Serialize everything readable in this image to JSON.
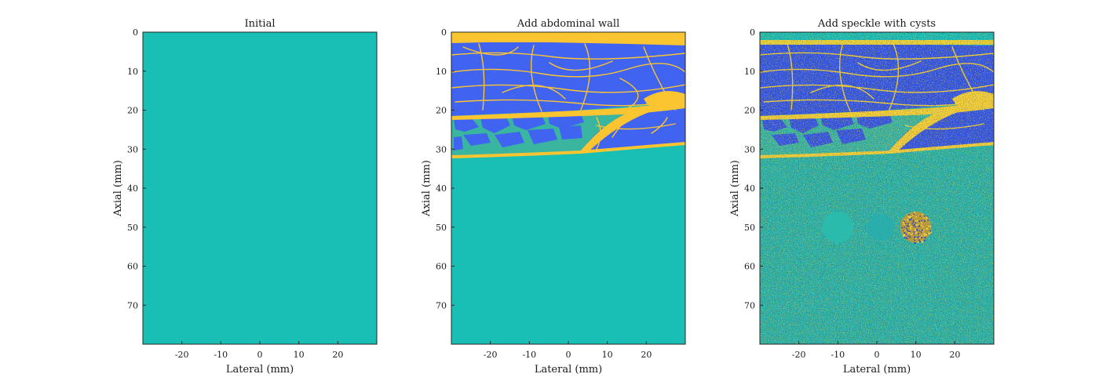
{
  "chart_data": [
    {
      "type": "heatmap",
      "title": "Initial",
      "xlabel": "Lateral (mm)",
      "ylabel": "Axial (mm)",
      "xlim": [
        -30,
        30
      ],
      "ylim": [
        0,
        80
      ],
      "xticks": [
        -20,
        -10,
        0,
        10,
        20
      ],
      "yticks": [
        0,
        10,
        20,
        30,
        40,
        50,
        60,
        70
      ],
      "regions": [
        {
          "label": "background tissue",
          "axial_range_mm": [
            0,
            80
          ],
          "color": "#19bfb5"
        }
      ]
    },
    {
      "type": "heatmap",
      "title": "Add abdominal wall",
      "xlabel": "Lateral (mm)",
      "ylabel": "Axial (mm)",
      "xlim": [
        -30,
        30
      ],
      "ylim": [
        0,
        80
      ],
      "xticks": [
        -20,
        -10,
        0,
        10,
        20
      ],
      "yticks": [
        0,
        10,
        20,
        30,
        40,
        50,
        60,
        70
      ],
      "regions": [
        {
          "label": "skin layer",
          "axial_range_mm": [
            0,
            2.5
          ],
          "color": "#fbc431"
        },
        {
          "label": "muscle with fascia",
          "axial_range_mm": [
            2.5,
            21.5
          ],
          "color": "#4063f0"
        },
        {
          "label": "fat layer",
          "axial_range_mm": [
            21.5,
            31
          ],
          "color": "#3ab6a0"
        },
        {
          "label": "liver background",
          "axial_range_mm": [
            31,
            80
          ],
          "color": "#19bfb5"
        }
      ]
    },
    {
      "type": "heatmap",
      "title": "Add speckle with cysts",
      "xlabel": "Lateral (mm)",
      "ylabel": "Axial (mm)",
      "xlim": [
        -30,
        30
      ],
      "ylim": [
        0,
        80
      ],
      "xticks": [
        -20,
        -10,
        0,
        10,
        20
      ],
      "yticks": [
        0,
        10,
        20,
        30,
        40,
        50,
        60,
        70
      ],
      "cysts": [
        {
          "center_lateral_mm": -10,
          "center_axial_mm": 50,
          "radius_mm": 4,
          "kind": "anechoic"
        },
        {
          "center_lateral_mm": 1,
          "center_axial_mm": 50,
          "radius_mm": 3.5,
          "kind": "low-contrast"
        },
        {
          "center_lateral_mm": 10,
          "center_axial_mm": 50,
          "radius_mm": 4,
          "kind": "hyperechoic"
        }
      ]
    }
  ],
  "colors": {
    "teal": "#19bfb5",
    "blue": "#4063f0",
    "yellow": "#fbc431",
    "green": "#3ab6a0",
    "axis": "#262626"
  }
}
